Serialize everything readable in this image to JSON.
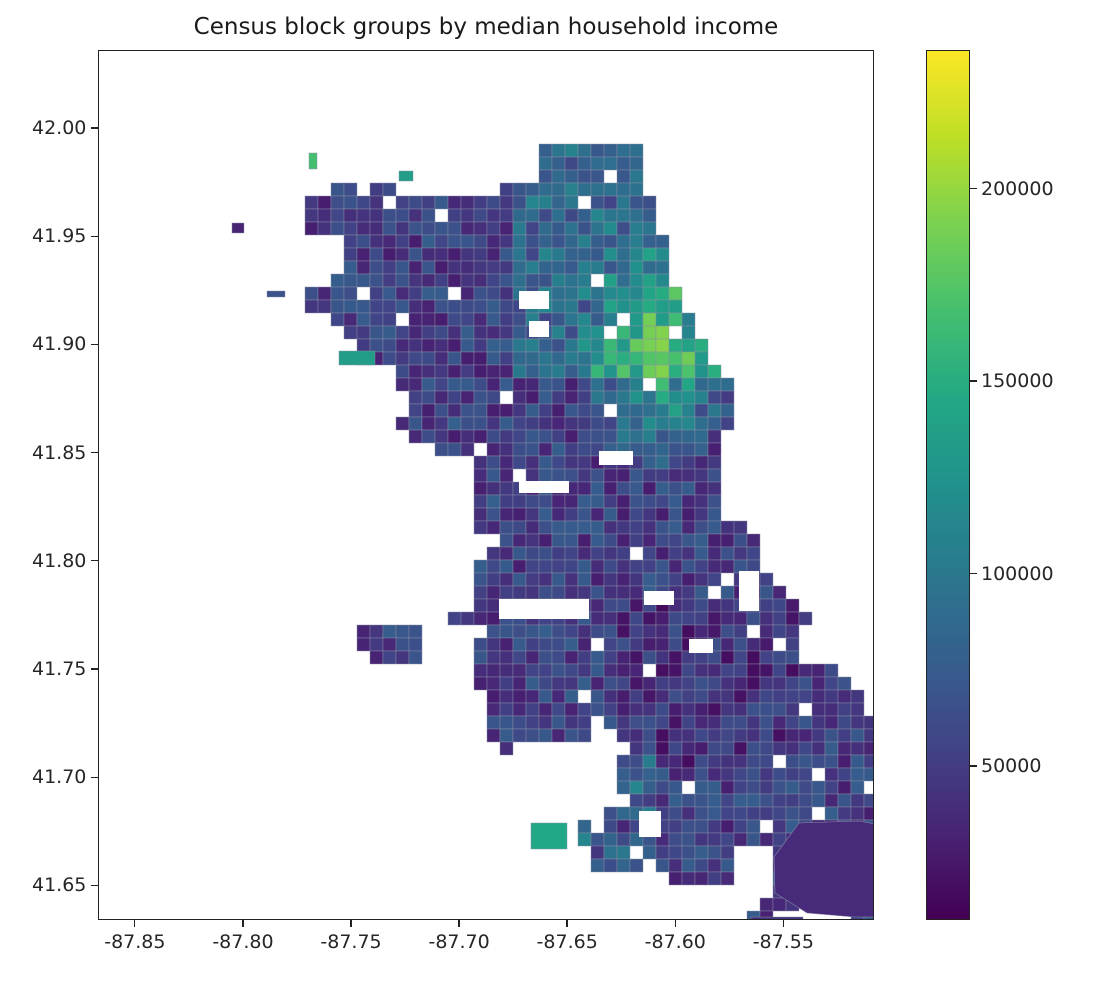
{
  "title": "Census block groups by median household income",
  "x_axis": {
    "ticks": [
      "-87.85",
      "-87.80",
      "-87.75",
      "-87.70",
      "-87.65",
      "-87.60",
      "-87.55"
    ],
    "tick_values": [
      -87.85,
      -87.8,
      -87.75,
      -87.7,
      -87.65,
      -87.6,
      -87.55
    ],
    "range": [
      -87.867,
      -87.508
    ]
  },
  "y_axis": {
    "ticks": [
      "42.00",
      "41.95",
      "41.90",
      "41.85",
      "41.80",
      "41.75",
      "41.70",
      "41.65"
    ],
    "tick_values": [
      42.0,
      41.95,
      41.9,
      41.85,
      41.8,
      41.75,
      41.7,
      41.65
    ],
    "range": [
      41.634,
      42.036
    ]
  },
  "colorbar": {
    "colormap": "viridis",
    "range": [
      10000,
      236000
    ],
    "ticks": [
      "50000",
      "100000",
      "150000",
      "200000"
    ],
    "tick_values": [
      50000,
      100000,
      150000,
      200000
    ],
    "colors": [
      "#440154",
      "#482475",
      "#414487",
      "#355f8d",
      "#2a788e",
      "#21918c",
      "#22a884",
      "#44bf70",
      "#7ad151",
      "#bddf26",
      "#fde725"
    ]
  }
}
